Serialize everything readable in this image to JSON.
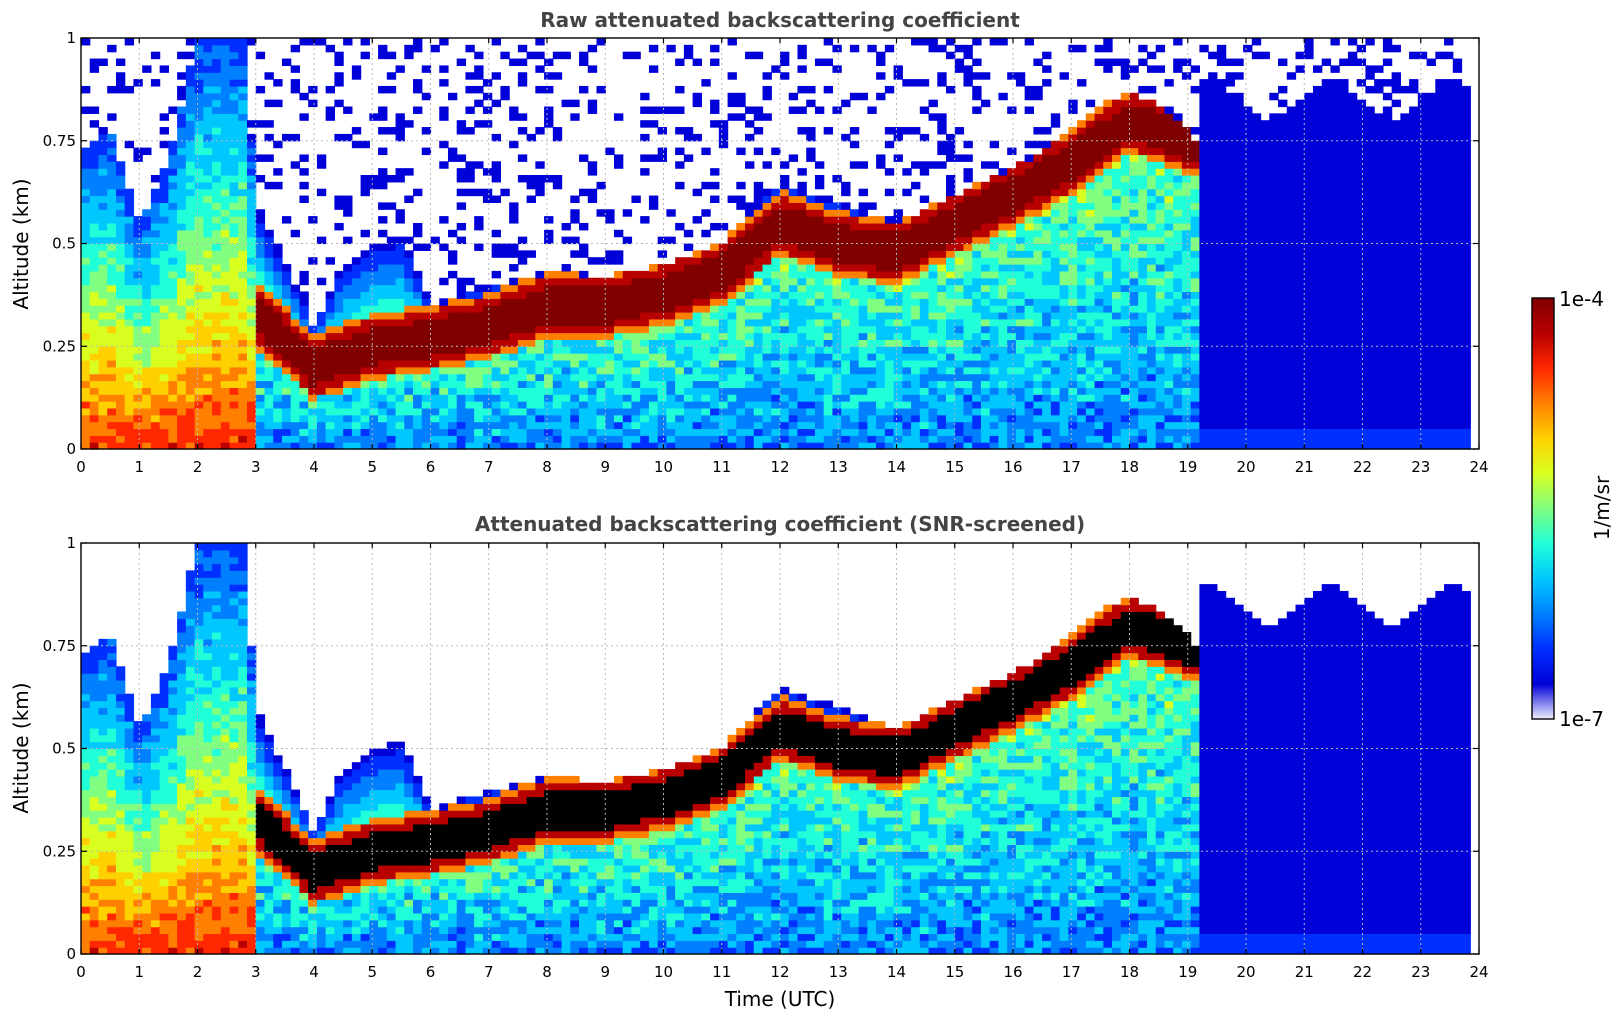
{
  "colors": {
    "jet": [
      "#ffffff",
      "#eeeeff",
      "#0000d8",
      "#0030ff",
      "#0080ff",
      "#00c8ff",
      "#20ffd8",
      "#80ff80",
      "#d8ff20",
      "#ffd000",
      "#ff8000",
      "#ff2800",
      "#b80000",
      "#800000",
      "#000000"
    ],
    "gridline": "#b8b8b8",
    "title_text": "#444444"
  },
  "chart_data": [
    {
      "type": "heatmap",
      "title": "Raw attenuated backscattering coefficient",
      "xlabel": "",
      "ylabel": "Altitude (km)",
      "xlim": [
        0,
        24
      ],
      "ylim": [
        0,
        1
      ],
      "x_ticks": [
        "0",
        "1",
        "2",
        "3",
        "4",
        "5",
        "6",
        "7",
        "8",
        "9",
        "10",
        "11",
        "12",
        "13",
        "14",
        "15",
        "16",
        "17",
        "18",
        "19",
        "20",
        "21",
        "22",
        "23",
        "24"
      ],
      "y_ticks": [
        "0",
        "0.25",
        "0.5",
        "0.75",
        "1"
      ],
      "x_tick_values": [
        0,
        1,
        2,
        3,
        4,
        5,
        6,
        7,
        8,
        9,
        10,
        11,
        12,
        13,
        14,
        15,
        16,
        17,
        18,
        19,
        20,
        21,
        22,
        23,
        24
      ],
      "y_tick_values": [
        0,
        0.25,
        0.5,
        0.75,
        1
      ],
      "grid": true,
      "snr_screened": false,
      "layer_top_km": [
        [
          0,
          0.72
        ],
        [
          0.5,
          0.78
        ],
        [
          1,
          0.55
        ],
        [
          1.5,
          0.7
        ],
        [
          2,
          1.0
        ],
        [
          2.8,
          1.0
        ],
        [
          3,
          0.6
        ],
        [
          3.5,
          0.45
        ],
        [
          4,
          0.3
        ],
        [
          4.5,
          0.45
        ],
        [
          5,
          0.5
        ],
        [
          5.5,
          0.52
        ],
        [
          6,
          0.35
        ],
        [
          7,
          0.4
        ],
        [
          8,
          0.43
        ],
        [
          9,
          0.42
        ],
        [
          10,
          0.45
        ],
        [
          11,
          0.5
        ],
        [
          12,
          0.65
        ],
        [
          13,
          0.6
        ],
        [
          14,
          0.55
        ],
        [
          15,
          0.62
        ],
        [
          16,
          0.68
        ],
        [
          17,
          0.78
        ],
        [
          18,
          0.88
        ],
        [
          19,
          0.78
        ],
        [
          19.3,
          0.7
        ]
      ],
      "layer_core_km": [
        [
          3,
          0.33
        ],
        [
          4,
          0.2
        ],
        [
          5,
          0.25
        ],
        [
          6,
          0.27
        ],
        [
          7,
          0.3
        ],
        [
          8,
          0.35
        ],
        [
          9,
          0.35
        ],
        [
          10,
          0.38
        ],
        [
          11,
          0.43
        ],
        [
          12,
          0.55
        ],
        [
          13,
          0.5
        ],
        [
          14,
          0.48
        ],
        [
          15,
          0.55
        ],
        [
          16,
          0.62
        ],
        [
          17,
          0.7
        ],
        [
          18,
          0.8
        ],
        [
          19,
          0.75
        ]
      ],
      "surface_layer_end_h": 3.0
    },
    {
      "type": "heatmap",
      "title": "Attenuated backscattering coefficient (SNR-screened)",
      "xlabel": "Time (UTC)",
      "ylabel": "Altitude (km)",
      "xlim": [
        0,
        24
      ],
      "ylim": [
        0,
        1
      ],
      "x_ticks": [
        "0",
        "1",
        "2",
        "3",
        "4",
        "5",
        "6",
        "7",
        "8",
        "9",
        "10",
        "11",
        "12",
        "13",
        "14",
        "15",
        "16",
        "17",
        "18",
        "19",
        "20",
        "21",
        "22",
        "23",
        "24"
      ],
      "y_ticks": [
        "0",
        "0.25",
        "0.5",
        "0.75",
        "1"
      ],
      "x_tick_values": [
        0,
        1,
        2,
        3,
        4,
        5,
        6,
        7,
        8,
        9,
        10,
        11,
        12,
        13,
        14,
        15,
        16,
        17,
        18,
        19,
        20,
        21,
        22,
        23,
        24
      ],
      "y_tick_values": [
        0,
        0.25,
        0.5,
        0.75,
        1
      ],
      "grid": true,
      "snr_screened": true,
      "layer_top_km": [
        [
          0,
          0.72
        ],
        [
          0.5,
          0.78
        ],
        [
          1,
          0.55
        ],
        [
          1.5,
          0.7
        ],
        [
          2,
          1.0
        ],
        [
          2.8,
          1.0
        ],
        [
          3,
          0.6
        ],
        [
          3.5,
          0.45
        ],
        [
          4,
          0.3
        ],
        [
          4.5,
          0.45
        ],
        [
          5,
          0.5
        ],
        [
          5.5,
          0.52
        ],
        [
          6,
          0.35
        ],
        [
          7,
          0.4
        ],
        [
          8,
          0.43
        ],
        [
          9,
          0.42
        ],
        [
          10,
          0.45
        ],
        [
          11,
          0.5
        ],
        [
          12,
          0.65
        ],
        [
          13,
          0.6
        ],
        [
          14,
          0.55
        ],
        [
          15,
          0.62
        ],
        [
          16,
          0.68
        ],
        [
          17,
          0.78
        ],
        [
          18,
          0.88
        ],
        [
          19,
          0.78
        ],
        [
          19.3,
          0.7
        ]
      ],
      "layer_core_km": [
        [
          3,
          0.33
        ],
        [
          4,
          0.2
        ],
        [
          5,
          0.25
        ],
        [
          6,
          0.27
        ],
        [
          7,
          0.3
        ],
        [
          8,
          0.35
        ],
        [
          9,
          0.35
        ],
        [
          10,
          0.38
        ],
        [
          11,
          0.43
        ],
        [
          12,
          0.55
        ],
        [
          13,
          0.5
        ],
        [
          14,
          0.48
        ],
        [
          15,
          0.55
        ],
        [
          16,
          0.62
        ],
        [
          17,
          0.7
        ],
        [
          18,
          0.8
        ],
        [
          19,
          0.75
        ]
      ],
      "surface_layer_end_h": 3.0
    }
  ],
  "colorbar": {
    "label": "1/m/sr",
    "max_label": "1e-4",
    "min_label": "1e-7",
    "range": [
      1e-07,
      0.0001
    ],
    "scale": "log"
  }
}
